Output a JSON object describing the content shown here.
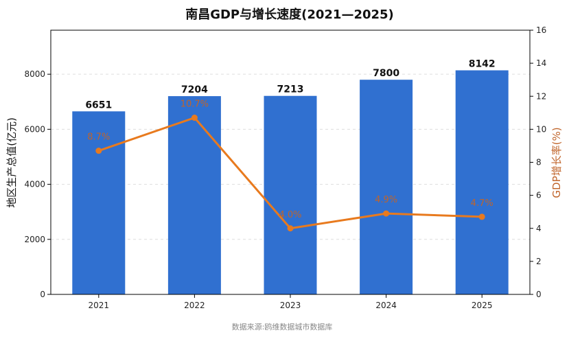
{
  "chart_data": {
    "type": "bar+line",
    "title": "南昌GDP与增长速度(2021—2025)",
    "categories": [
      "2021",
      "2022",
      "2023",
      "2024",
      "2025"
    ],
    "series": [
      {
        "name": "地区生产总值(亿元)",
        "type": "bar",
        "axis": "left",
        "values": [
          6651,
          7204,
          7213,
          7800,
          8142
        ],
        "labels": [
          "6651",
          "7204",
          "7213",
          "7800",
          "8142"
        ]
      },
      {
        "name": "GDP增长率(%)",
        "type": "line",
        "axis": "right",
        "values": [
          8.7,
          10.7,
          4.0,
          4.9,
          4.7
        ],
        "labels": [
          "8.7%",
          "10.7%",
          "4.0%",
          "4.9%",
          "4.7%"
        ]
      }
    ],
    "ylabel_left": "地区生产总值(亿元)",
    "ylabel_right": "GDP增长率(%)",
    "ylim_left": [
      0,
      9600
    ],
    "yticks_left": [
      "0",
      "2000",
      "4000",
      "6000",
      "8000"
    ],
    "ylim_right": [
      0,
      16
    ],
    "yticks_right": [
      "0",
      "2",
      "4",
      "6",
      "8",
      "10",
      "12",
      "14",
      "16"
    ],
    "grid": "horizontal dashed",
    "colors": {
      "bar": "#3070d0",
      "line": "#e87a1e",
      "line_label": "#c0642a",
      "right_axis_label": "#c0642a"
    }
  },
  "source_note": "数据来源:鸥维数据城市数据库"
}
